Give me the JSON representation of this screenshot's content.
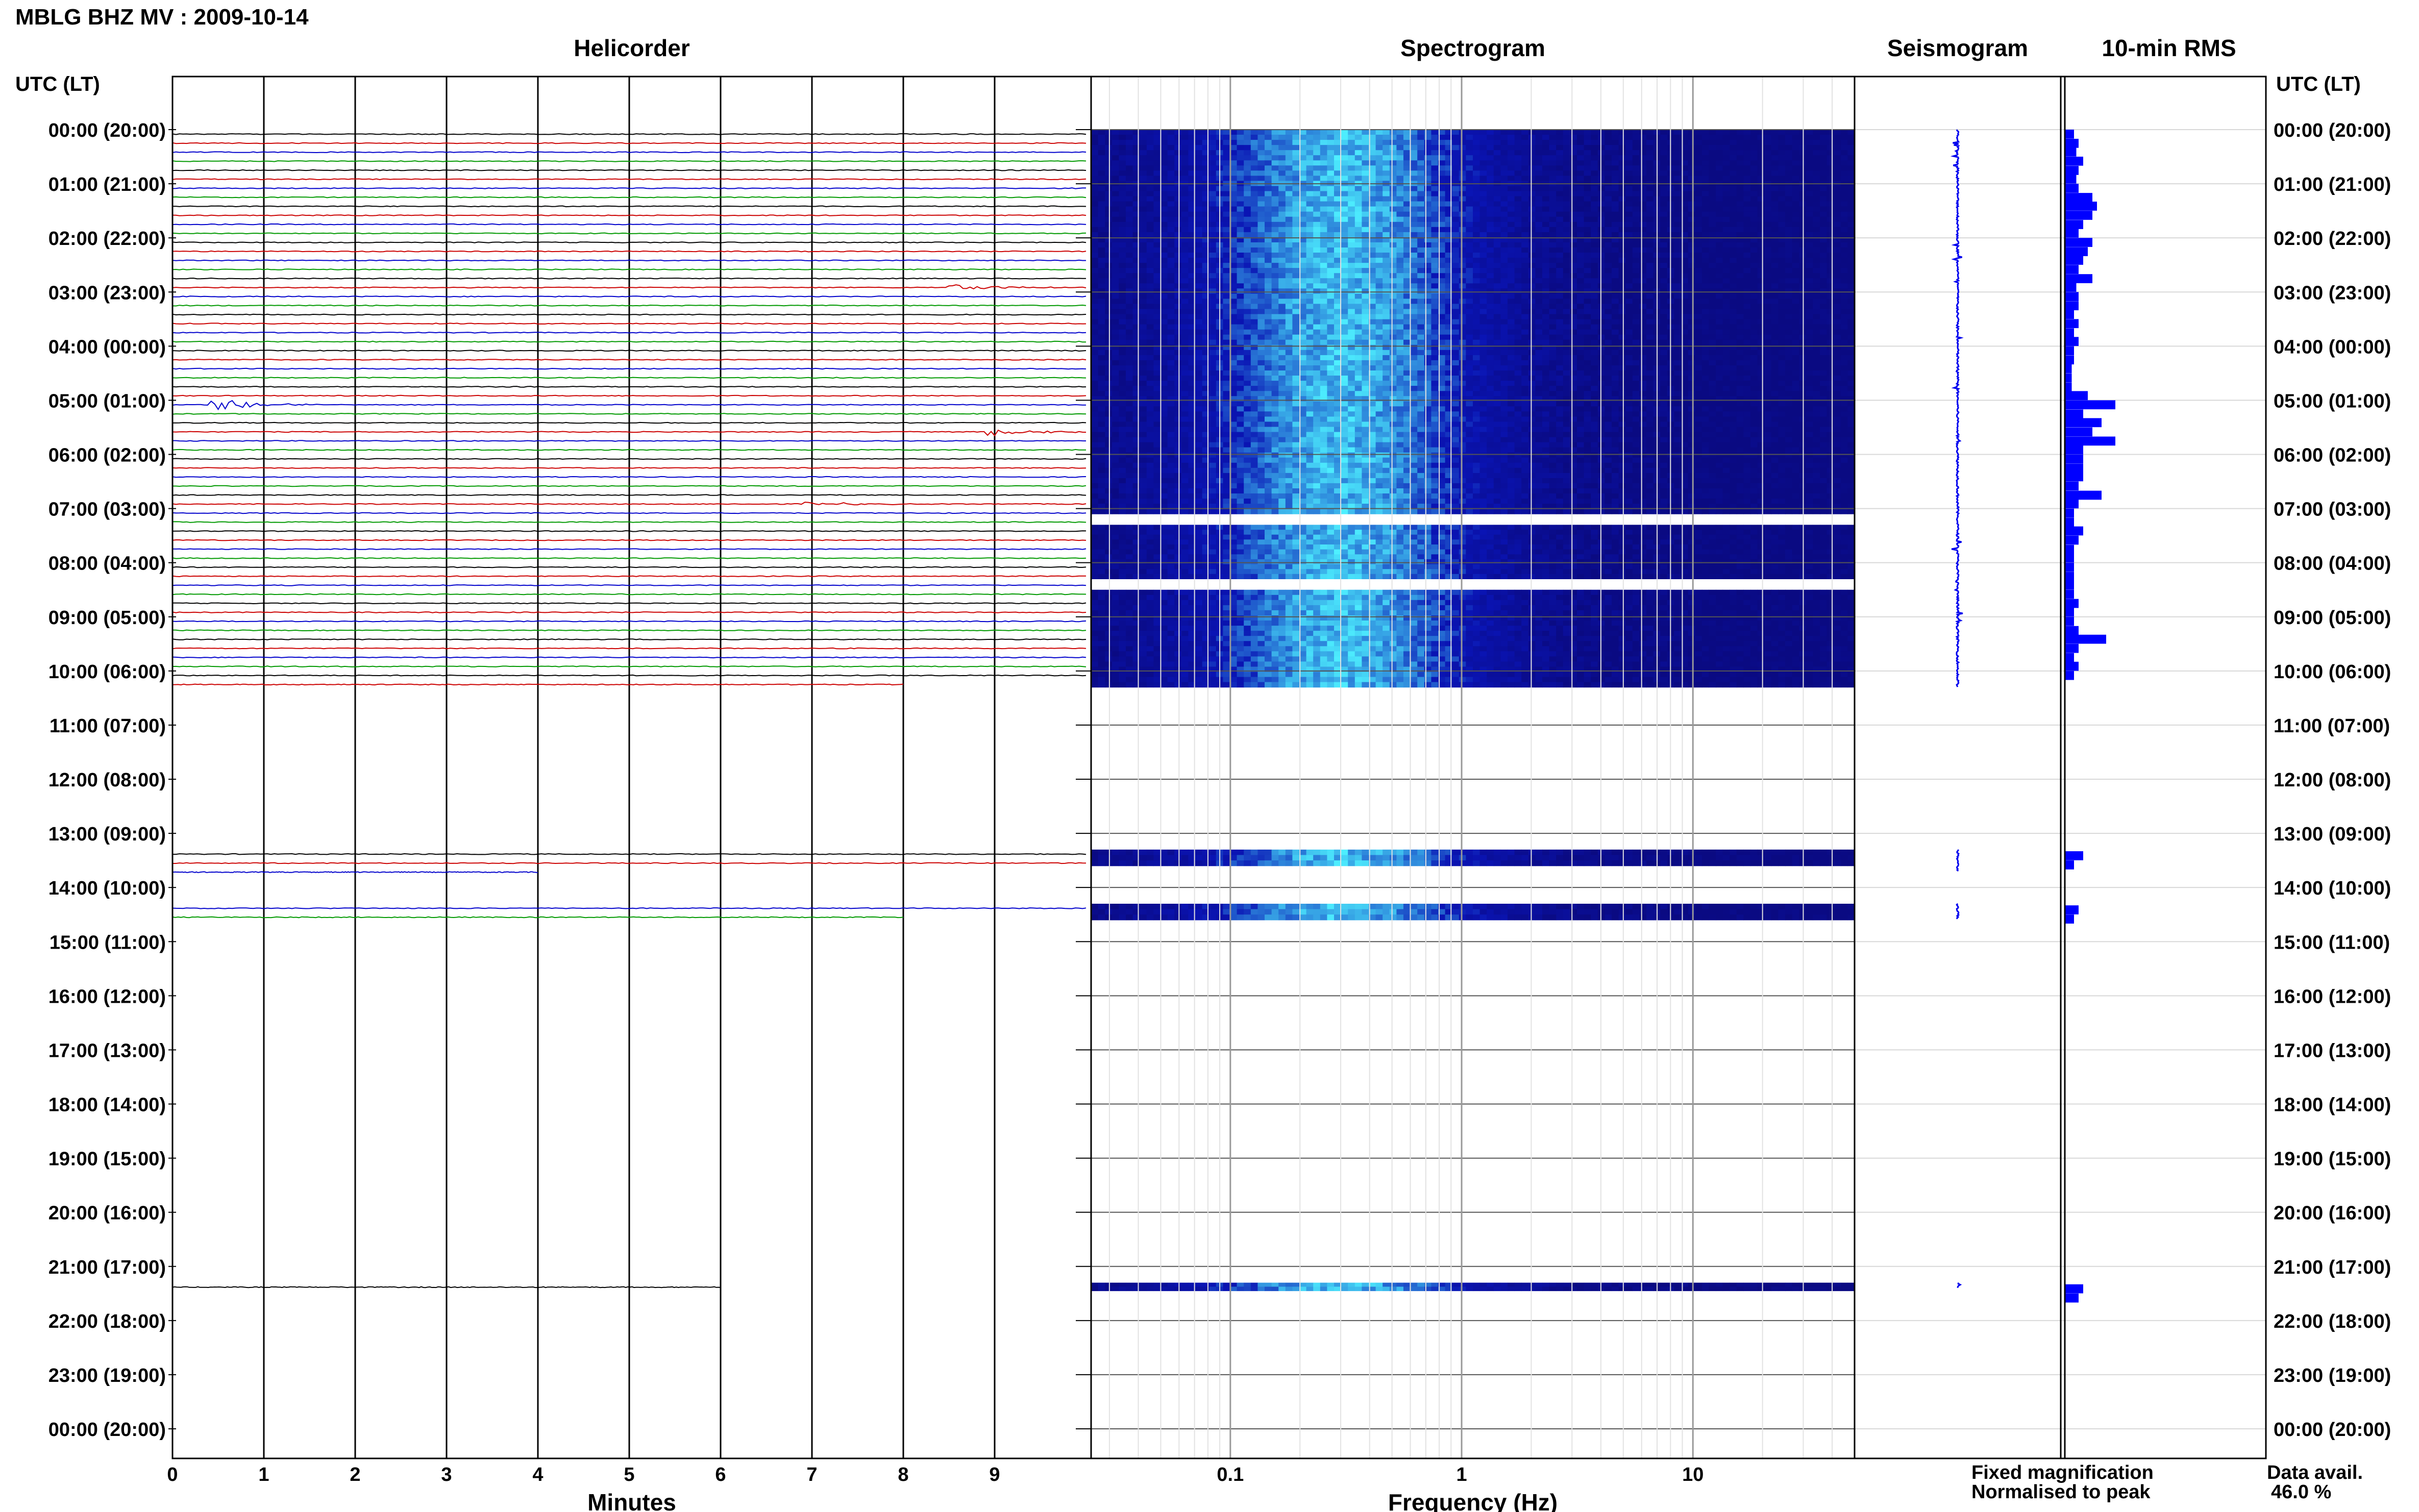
{
  "header": {
    "title": "MBLG BHZ MV : 2009-10-14",
    "axis_caption_left": "UTC (LT)",
    "axis_caption_right": "UTC (LT)"
  },
  "panels": {
    "helicorder_title": "Helicorder",
    "spectrogram_title": "Spectrogram",
    "seismogram_title": "Seismogram",
    "rms_title": "10-min RMS"
  },
  "legend": {
    "fixed_magnification": "Fixed magnification",
    "normalised_to_peak": "Normalised to peak",
    "fixed_color": "#0000ee",
    "normalised_color": "#ee0000",
    "data_avail_label": "Data avail.",
    "data_avail_value": "46.0 %"
  },
  "colors": {
    "trace_cycle": [
      "#000000",
      "#cc0000",
      "#0000cc",
      "#009900"
    ],
    "spectrogram_low": "#0a14b4",
    "spectrogram_high": "#4ef0ff",
    "rms_bar": "#0000ff"
  },
  "chart_data": [
    {
      "type": "line",
      "name": "helicorder",
      "title": "Helicorder",
      "xlabel": "Minutes",
      "ylabel": "UTC (LT)",
      "xlim": [
        0,
        10
      ],
      "x_ticks": [
        "0",
        "1",
        "2",
        "3",
        "4",
        "5",
        "6",
        "7",
        "8",
        "9"
      ],
      "y_ticks": [
        "00:00 (20:00)",
        "01:00 (21:00)",
        "02:00 (22:00)",
        "03:00 (23:00)",
        "04:00 (00:00)",
        "05:00 (01:00)",
        "06:00 (02:00)",
        "07:00 (03:00)",
        "08:00 (04:00)",
        "09:00 (05:00)",
        "10:00 (06:00)",
        "11:00 (07:00)",
        "12:00 (08:00)",
        "13:00 (09:00)",
        "14:00 (10:00)",
        "15:00 (11:00)",
        "16:00 (12:00)",
        "17:00 (13:00)",
        "18:00 (14:00)",
        "19:00 (15:00)",
        "20:00 (16:00)",
        "21:00 (17:00)",
        "22:00 (18:00)",
        "23:00 (19:00)",
        "00:00 (20:00)"
      ],
      "row_interval_minutes": 10,
      "data_segments_utc_hours": [
        [
          0.0,
          10.3
        ],
        [
          13.3,
          13.7
        ],
        [
          14.3,
          14.6
        ],
        [
          21.3,
          21.4
        ]
      ],
      "events": [
        {
          "hour": 5.0,
          "minute": 0.5,
          "amplitude": 3
        },
        {
          "hour": 5.5,
          "minute": 9.0,
          "amplitude": 2
        },
        {
          "hour": 2.8,
          "minute": 8.6,
          "amplitude": 1.5
        },
        {
          "hour": 6.8,
          "minute": 7.0,
          "amplitude": 1.2
        }
      ]
    },
    {
      "type": "heatmap",
      "name": "spectrogram",
      "title": "Spectrogram",
      "xlabel": "Frequency (Hz)",
      "x_scale": "log",
      "xlim": [
        0.025,
        50
      ],
      "x_ticks": [
        "0.1",
        "1",
        "10"
      ],
      "data_segments_utc_hours": [
        [
          0.0,
          7.1
        ],
        [
          7.3,
          8.3
        ],
        [
          8.5,
          10.3
        ],
        [
          13.3,
          13.6
        ],
        [
          14.3,
          14.6
        ],
        [
          21.3,
          21.45
        ]
      ],
      "peak_frequency_hz": 0.3
    },
    {
      "type": "line",
      "name": "seismogram",
      "title": "Seismogram",
      "data_segments_utc_hours": [
        [
          0.0,
          10.3
        ],
        [
          13.3,
          13.7
        ],
        [
          14.3,
          14.6
        ],
        [
          21.3,
          21.4
        ]
      ]
    },
    {
      "type": "bar",
      "name": "10-min-rms",
      "title": "10-min RMS",
      "orientation": "horizontal",
      "bin_minutes": 10,
      "bins": [
        {
          "hour": 0.0,
          "v": 2
        },
        {
          "hour": 0.17,
          "v": 3
        },
        {
          "hour": 0.33,
          "v": 2.5
        },
        {
          "hour": 0.5,
          "v": 4
        },
        {
          "hour": 0.67,
          "v": 3
        },
        {
          "hour": 0.83,
          "v": 2.5
        },
        {
          "hour": 1.0,
          "v": 3
        },
        {
          "hour": 1.17,
          "v": 6
        },
        {
          "hour": 1.33,
          "v": 7
        },
        {
          "hour": 1.5,
          "v": 6
        },
        {
          "hour": 1.67,
          "v": 4
        },
        {
          "hour": 1.83,
          "v": 3
        },
        {
          "hour": 2.0,
          "v": 6
        },
        {
          "hour": 2.17,
          "v": 5
        },
        {
          "hour": 2.33,
          "v": 4
        },
        {
          "hour": 2.5,
          "v": 3
        },
        {
          "hour": 2.67,
          "v": 6
        },
        {
          "hour": 2.83,
          "v": 2.5
        },
        {
          "hour": 3.0,
          "v": 3
        },
        {
          "hour": 3.17,
          "v": 3
        },
        {
          "hour": 3.33,
          "v": 2
        },
        {
          "hour": 3.5,
          "v": 3
        },
        {
          "hour": 3.67,
          "v": 2
        },
        {
          "hour": 3.83,
          "v": 3
        },
        {
          "hour": 4.0,
          "v": 2
        },
        {
          "hour": 4.17,
          "v": 2
        },
        {
          "hour": 4.33,
          "v": 1.5
        },
        {
          "hour": 4.5,
          "v": 1.5
        },
        {
          "hour": 4.67,
          "v": 1.5
        },
        {
          "hour": 4.83,
          "v": 5
        },
        {
          "hour": 5.0,
          "v": 11
        },
        {
          "hour": 5.17,
          "v": 4
        },
        {
          "hour": 5.33,
          "v": 8
        },
        {
          "hour": 5.5,
          "v": 6
        },
        {
          "hour": 5.67,
          "v": 11
        },
        {
          "hour": 5.83,
          "v": 4
        },
        {
          "hour": 6.0,
          "v": 4
        },
        {
          "hour": 6.17,
          "v": 4
        },
        {
          "hour": 6.33,
          "v": 4
        },
        {
          "hour": 6.5,
          "v": 3
        },
        {
          "hour": 6.67,
          "v": 8
        },
        {
          "hour": 6.83,
          "v": 3
        },
        {
          "hour": 7.0,
          "v": 2
        },
        {
          "hour": 7.17,
          "v": 2
        },
        {
          "hour": 7.33,
          "v": 4
        },
        {
          "hour": 7.5,
          "v": 3
        },
        {
          "hour": 7.67,
          "v": 2
        },
        {
          "hour": 7.83,
          "v": 2
        },
        {
          "hour": 8.0,
          "v": 2
        },
        {
          "hour": 8.17,
          "v": 2
        },
        {
          "hour": 8.33,
          "v": 2
        },
        {
          "hour": 8.5,
          "v": 2
        },
        {
          "hour": 8.67,
          "v": 3
        },
        {
          "hour": 8.83,
          "v": 2
        },
        {
          "hour": 9.0,
          "v": 2
        },
        {
          "hour": 9.17,
          "v": 3
        },
        {
          "hour": 9.33,
          "v": 9
        },
        {
          "hour": 9.5,
          "v": 3
        },
        {
          "hour": 9.67,
          "v": 2
        },
        {
          "hour": 9.83,
          "v": 3
        },
        {
          "hour": 10.0,
          "v": 2
        },
        {
          "hour": 13.33,
          "v": 4
        },
        {
          "hour": 13.5,
          "v": 2
        },
        {
          "hour": 14.33,
          "v": 3
        },
        {
          "hour": 14.5,
          "v": 2
        },
        {
          "hour": 21.33,
          "v": 4
        },
        {
          "hour": 21.5,
          "v": 3
        }
      ]
    }
  ]
}
